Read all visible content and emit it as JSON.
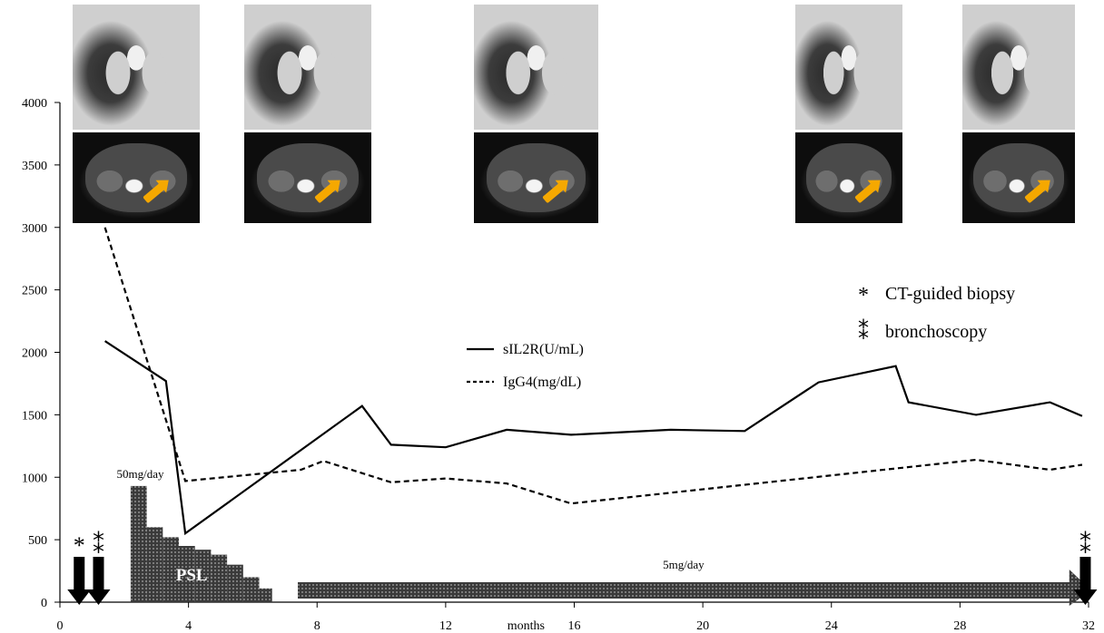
{
  "chart_data": {
    "type": "line",
    "x_axis": {
      "min": 0,
      "max": 32,
      "ticks": [
        "0",
        "4",
        "8",
        "12",
        "16",
        "20",
        "24",
        "28",
        "32"
      ],
      "label": "months"
    },
    "y_axis": {
      "min": 0,
      "max": 4000,
      "ticks": [
        "0",
        "500",
        "1000",
        "1500",
        "2000",
        "2500",
        "3000",
        "3500",
        "4000"
      ]
    },
    "series": [
      {
        "name": "sIL2R(U/mL)",
        "style": "solid",
        "color": "#000000",
        "points": [
          [
            1.4,
            2090
          ],
          [
            3.3,
            1770
          ],
          [
            3.9,
            550
          ],
          [
            9.4,
            1570
          ],
          [
            10.3,
            1260
          ],
          [
            12.0,
            1240
          ],
          [
            13.9,
            1380
          ],
          [
            15.9,
            1340
          ],
          [
            19.0,
            1380
          ],
          [
            21.3,
            1370
          ],
          [
            23.6,
            1760
          ],
          [
            26.0,
            1890
          ],
          [
            26.4,
            1600
          ],
          [
            28.5,
            1500
          ],
          [
            30.8,
            1600
          ],
          [
            31.8,
            1490
          ]
        ]
      },
      {
        "name": "IgG4(mg/dL)",
        "style": "dashed",
        "color": "#000000",
        "points": [
          [
            1.4,
            3000
          ],
          [
            3.9,
            970
          ],
          [
            7.5,
            1060
          ],
          [
            8.2,
            1130
          ],
          [
            10.3,
            960
          ],
          [
            12.0,
            990
          ],
          [
            13.9,
            950
          ],
          [
            15.9,
            790
          ],
          [
            28.5,
            1140
          ],
          [
            30.8,
            1060
          ],
          [
            31.8,
            1100
          ]
        ]
      }
    ],
    "psl": {
      "label": "PSL",
      "dose_label": "50mg/day",
      "steps": [
        [
          2.2,
          2.7,
          930
        ],
        [
          2.7,
          3.2,
          600
        ],
        [
          3.2,
          3.7,
          520
        ],
        [
          3.7,
          4.2,
          450
        ],
        [
          4.2,
          4.7,
          420
        ],
        [
          4.7,
          5.2,
          380
        ],
        [
          5.2,
          5.7,
          300
        ],
        [
          5.7,
          6.2,
          200
        ],
        [
          6.2,
          6.6,
          110
        ]
      ]
    },
    "maintenance": {
      "label": "5mg/day",
      "x_start": 7.4,
      "x_end": 31.4,
      "level": 110
    },
    "events": [
      {
        "type": "CT-guided biopsy",
        "symbol": "*",
        "x": 0.6
      },
      {
        "type": "bronchoscopy",
        "symbol": "⁑",
        "x": 1.2
      },
      {
        "type": "bronchoscopy",
        "symbol": "⁑",
        "x": 31.9
      }
    ],
    "legend": {
      "position": "center"
    },
    "event_legend": {
      "items": [
        {
          "symbol": "*",
          "label": "CT-guided biopsy"
        },
        {
          "symbol": "⁑",
          "label": "bronchoscopy"
        }
      ]
    },
    "ct_panels": [
      "panel-1",
      "panel-2",
      "panel-3",
      "panel-4",
      "panel-5"
    ]
  }
}
